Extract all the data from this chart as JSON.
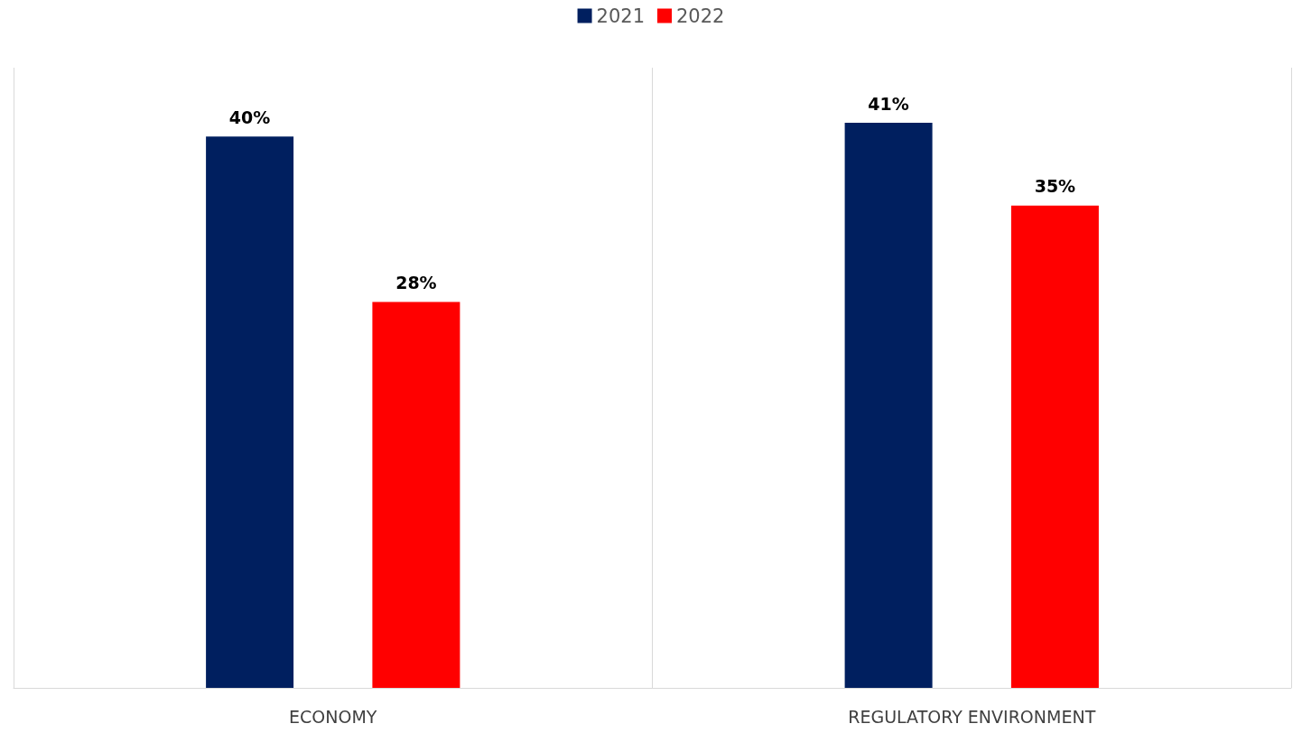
{
  "chart_data": {
    "type": "bar",
    "categories": [
      "ECONOMY",
      "REGULATORY ENVIRONMENT"
    ],
    "series": [
      {
        "name": "2021",
        "color": "#001f5f",
        "values": [
          40,
          41
        ],
        "value_labels": [
          "40%",
          "41%"
        ]
      },
      {
        "name": "2022",
        "color": "#ff0000",
        "values": [
          28,
          35
        ],
        "value_labels": [
          "28%",
          "35%"
        ]
      }
    ],
    "ylim": [
      0,
      45
    ],
    "tick_labels": "x",
    "grid": "x",
    "legend": "top"
  }
}
